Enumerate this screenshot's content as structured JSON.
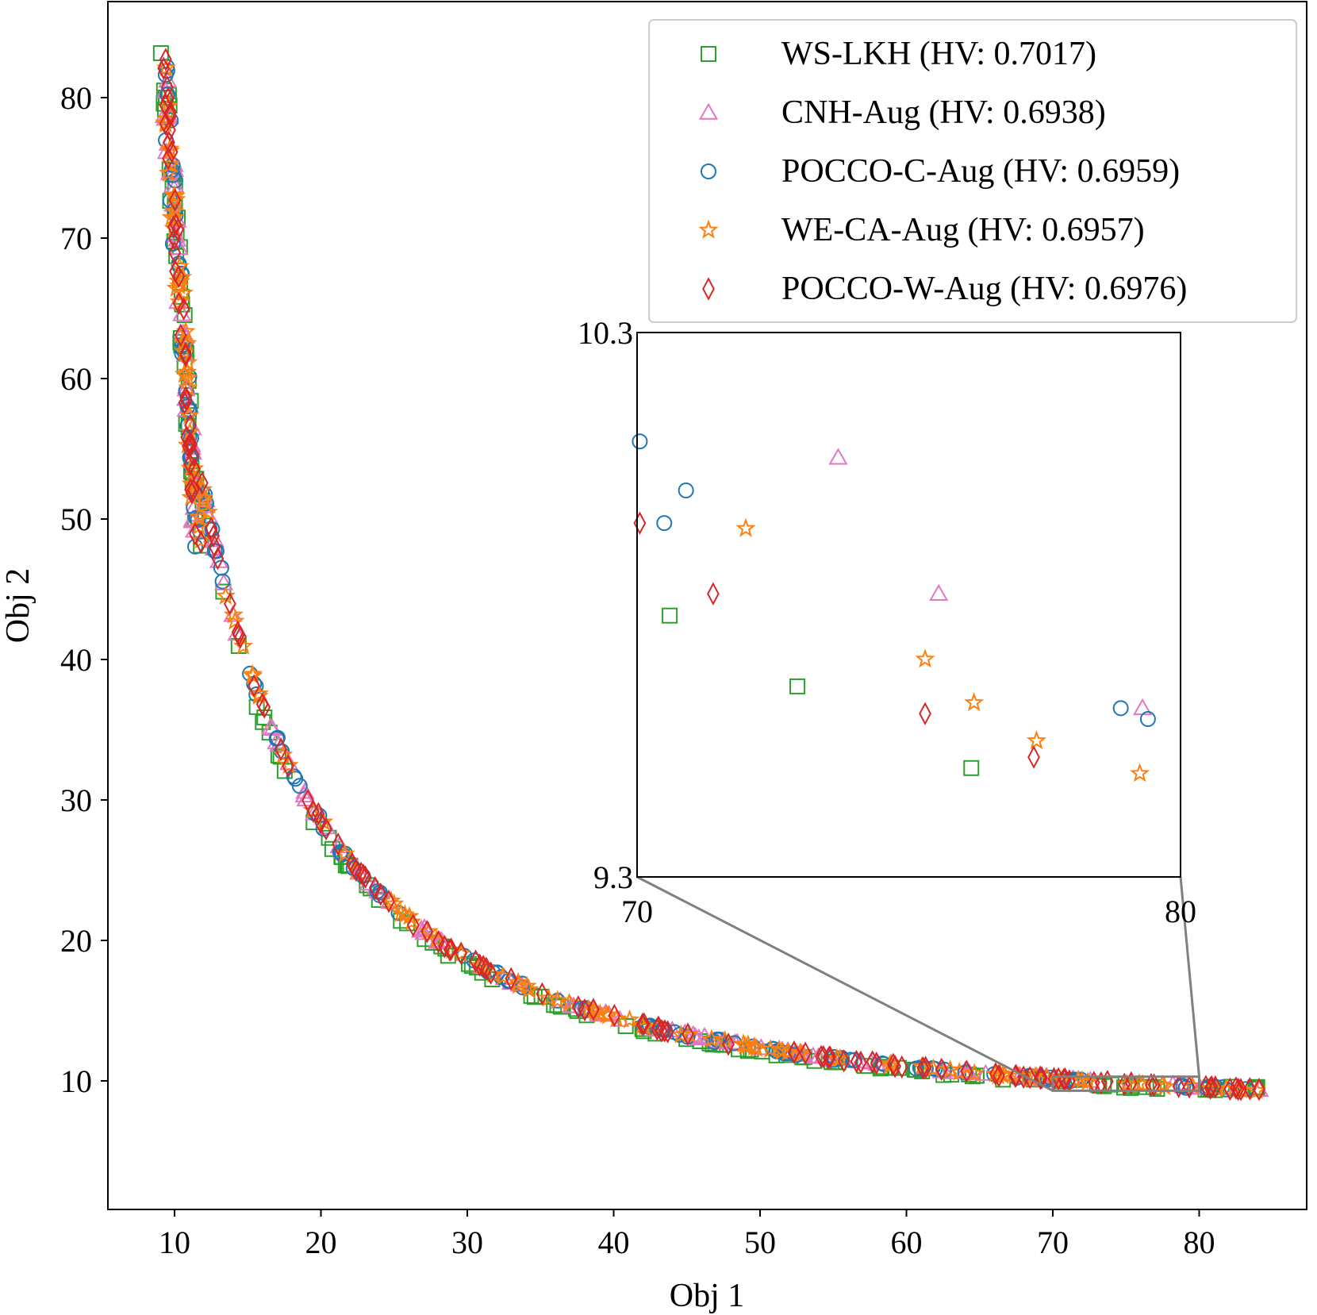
{
  "chart_data": {
    "type": "scatter",
    "xlabel": "Obj 1",
    "ylabel": "Obj 2",
    "xlim": [
      5.5,
      87
    ],
    "ylim": [
      4.5,
      87
    ],
    "xticks": [
      10,
      20,
      30,
      40,
      50,
      60,
      70,
      80
    ],
    "yticks": [
      10,
      20,
      30,
      40,
      50,
      60,
      70,
      80
    ],
    "legend_position": "top-right",
    "series": [
      {
        "name": "WS-LKH (HV: 0.7017)",
        "marker": "square",
        "color": "#2ca02c"
      },
      {
        "name": "CNH-Aug (HV: 0.6938)",
        "marker": "triangle",
        "color": "#e377c2"
      },
      {
        "name": "POCCO-C-Aug (HV: 0.6959)",
        "marker": "circle",
        "color": "#1f77b4"
      },
      {
        "name": "WE-CA-Aug (HV: 0.6957)",
        "marker": "star",
        "color": "#ff7f0e"
      },
      {
        "name": "POCCO-W-Aug (HV: 0.6976)",
        "marker": "diamond",
        "color": "#d62728"
      }
    ],
    "front": {
      "description": "pareto front points per series lie near obj1*obj2 ~ constant",
      "x_range": [
        9.2,
        84.5
      ],
      "y_range": [
        9.3,
        83.3
      ]
    },
    "inset": {
      "xlim": [
        70,
        80
      ],
      "ylim": [
        9.3,
        10.3
      ],
      "xtick_labels": [
        "70",
        "80"
      ],
      "ytick_labels": [
        "9.3",
        "10.3"
      ],
      "points": [
        {
          "series": 0,
          "x": 70.6,
          "y": 9.78
        },
        {
          "series": 0,
          "x": 72.95,
          "y": 9.65
        },
        {
          "series": 0,
          "x": 76.15,
          "y": 9.5
        },
        {
          "series": 1,
          "x": 73.7,
          "y": 10.07
        },
        {
          "series": 1,
          "x": 75.55,
          "y": 9.82
        },
        {
          "series": 1,
          "x": 79.3,
          "y": 9.61
        },
        {
          "series": 2,
          "x": 70.05,
          "y": 10.1
        },
        {
          "series": 2,
          "x": 70.5,
          "y": 9.95
        },
        {
          "series": 2,
          "x": 70.9,
          "y": 10.01
        },
        {
          "series": 2,
          "x": 78.9,
          "y": 9.61
        },
        {
          "series": 2,
          "x": 79.4,
          "y": 9.59
        },
        {
          "series": 3,
          "x": 72.0,
          "y": 9.94
        },
        {
          "series": 3,
          "x": 75.3,
          "y": 9.7
        },
        {
          "series": 3,
          "x": 76.2,
          "y": 9.62
        },
        {
          "series": 3,
          "x": 77.35,
          "y": 9.55
        },
        {
          "series": 3,
          "x": 79.25,
          "y": 9.49
        },
        {
          "series": 4,
          "x": 70.05,
          "y": 9.95
        },
        {
          "series": 4,
          "x": 71.4,
          "y": 9.82
        },
        {
          "series": 4,
          "x": 75.3,
          "y": 9.6
        },
        {
          "series": 4,
          "x": 77.3,
          "y": 9.52
        }
      ]
    }
  }
}
